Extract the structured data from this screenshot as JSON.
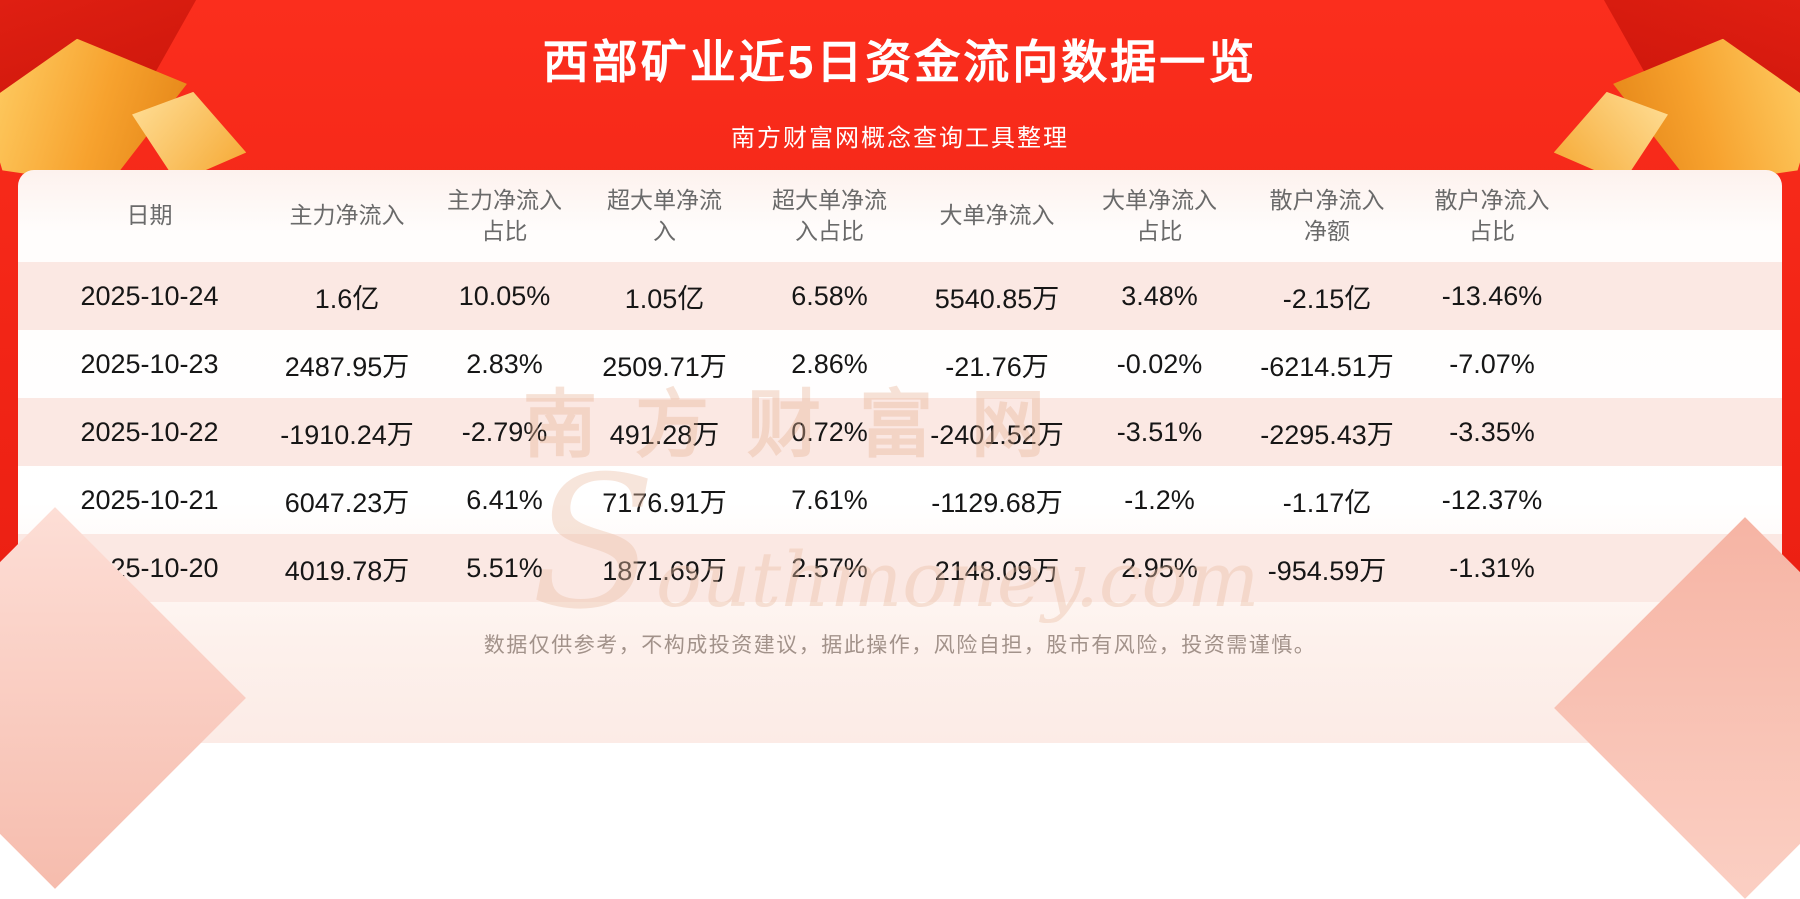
{
  "header": {
    "title": "西部矿业近5日资金流向数据一览",
    "subtitle": "南方财富网概念查询工具整理"
  },
  "chart_data": {
    "type": "table",
    "title": "西部矿业近5日资金流向数据一览",
    "columns": [
      "日期",
      "主力净流入",
      "主力净流入\n占比",
      "超大单净流\n入",
      "超大单净流\n入占比",
      "大单净流入",
      "大单净流入\n占比",
      "散户净流入\n净额",
      "散户净流入\n占比"
    ],
    "rows": [
      [
        "2025-10-24",
        "1.6亿",
        "10.05%",
        "1.05亿",
        "6.58%",
        "5540.85万",
        "3.48%",
        "-2.15亿",
        "-13.46%"
      ],
      [
        "2025-10-23",
        "2487.95万",
        "2.83%",
        "2509.71万",
        "2.86%",
        "-21.76万",
        "-0.02%",
        "-6214.51万",
        "-7.07%"
      ],
      [
        "2025-10-22",
        "-1910.24万",
        "-2.79%",
        "491.28万",
        "0.72%",
        "-2401.52万",
        "-3.51%",
        "-2295.43万",
        "-3.35%"
      ],
      [
        "2025-10-21",
        "6047.23万",
        "6.41%",
        "7176.91万",
        "7.61%",
        "-1129.68万",
        "-1.2%",
        "-1.17亿",
        "-12.37%"
      ],
      [
        "2025-10-20",
        "4019.78万",
        "5.51%",
        "1871.69万",
        "2.57%",
        "2148.09万",
        "2.95%",
        "-954.59万",
        "-1.31%"
      ]
    ]
  },
  "watermark": {
    "text_cn": "南方财富网",
    "text_en": "Southmoney.com"
  },
  "footer": {
    "disclaimer": "数据仅供参考，不构成投资建议，据此操作，风险自担，股市有风险，投资需谨慎。"
  },
  "colors": {
    "background_red": "#ee2315",
    "decor_gold": "#f7a22e",
    "decor_dark_red": "#b90e04",
    "decor_pink": "#f6bcad",
    "card_background": "#ffffff",
    "row_stripe": "#fbe8e3",
    "header_text": "#ffffff",
    "column_header_text": "#6a6a6a",
    "cell_text": "#161616",
    "disclaimer_text": "#a2928a",
    "watermark_text": "rgba(231,178,150,0.38)"
  }
}
